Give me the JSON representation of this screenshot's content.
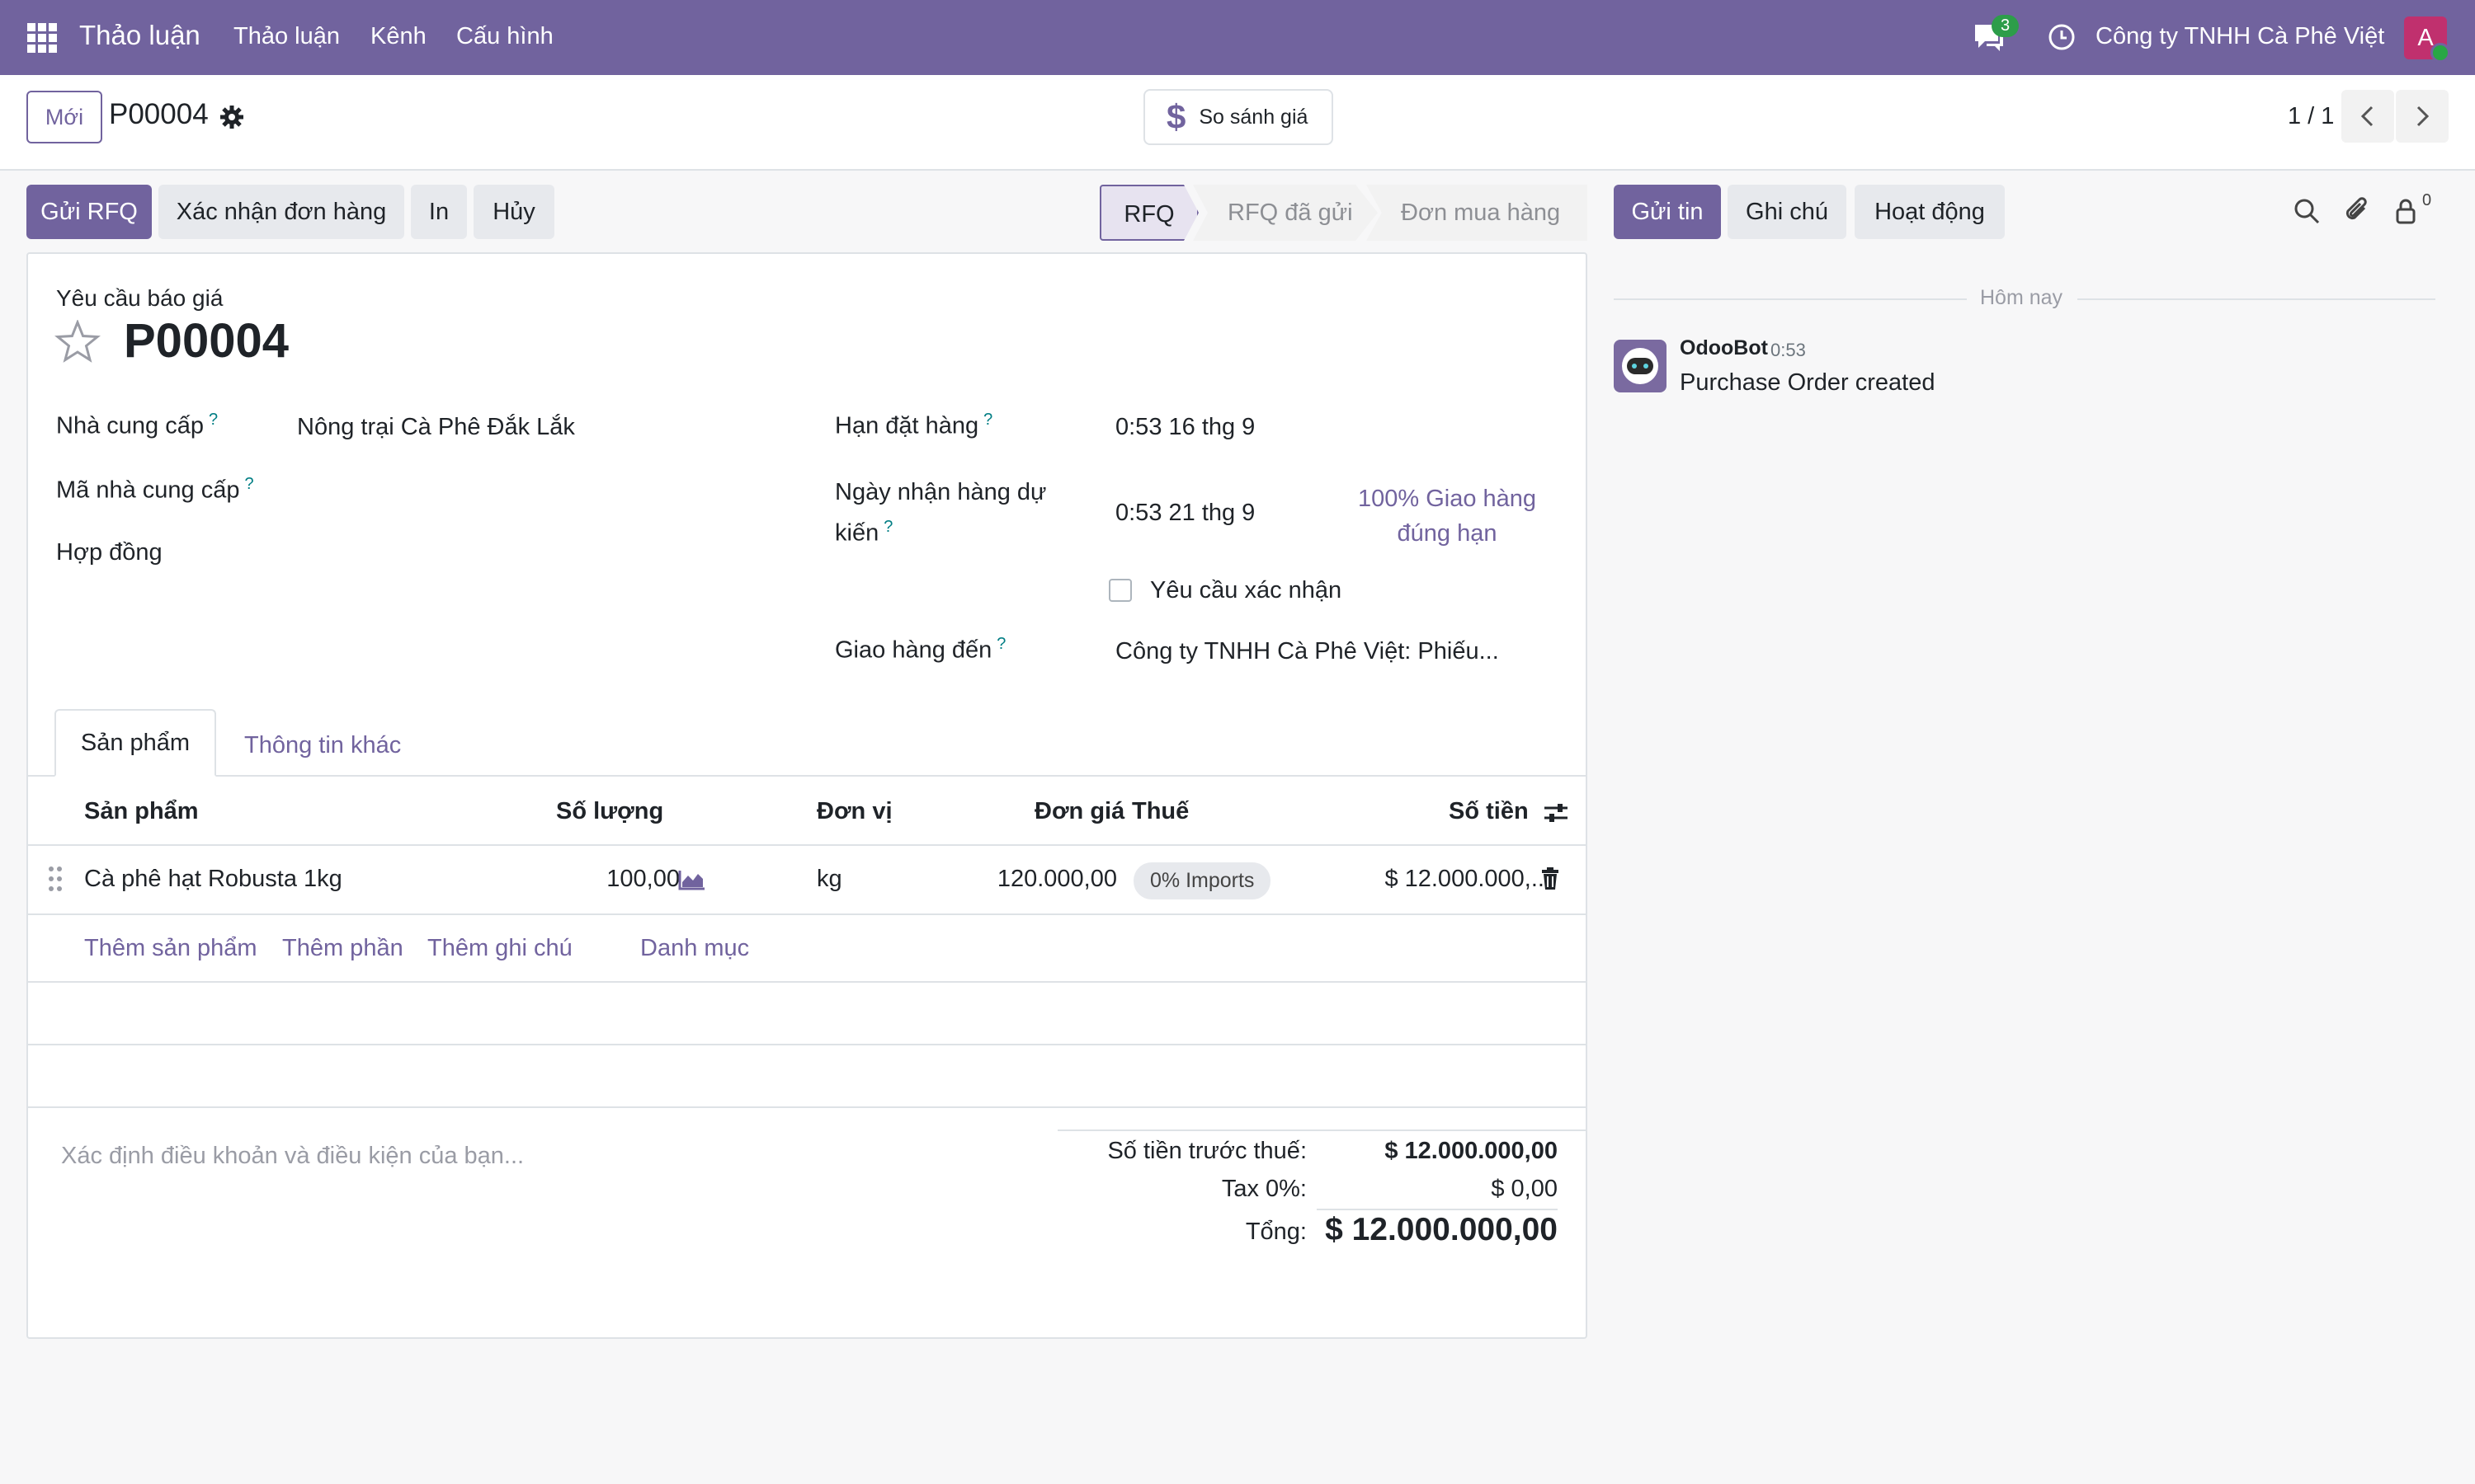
{
  "navbar": {
    "brand": "Thảo luận",
    "menu": [
      "Thảo luận",
      "Kênh",
      "Cấu hình"
    ],
    "chat_count": "3",
    "company": "Công ty TNHH Cà Phê Việt",
    "avatar_letter": "A",
    "color": "#71639e"
  },
  "control": {
    "new_label": "Mới",
    "record_name": "P00004",
    "compare_label": "So sánh giá",
    "compare_icon": "$",
    "pager": "1 / 1"
  },
  "actions": {
    "send_rfq": "Gửi RFQ",
    "confirm": "Xác nhận đơn hàng",
    "print": "In",
    "cancel": "Hủy"
  },
  "statusbar": {
    "steps": [
      "RFQ",
      "RFQ đã gửi",
      "Đơn mua hàng"
    ],
    "active": "RFQ"
  },
  "form": {
    "subtitle": "Yêu cầu báo giá",
    "name": "P00004",
    "vendor_label": "Nhà cung cấp",
    "vendor_value": "Nông trại Cà Phê Đắk Lắk",
    "vendor_ref_label": "Mã nhà cung cấp",
    "agreement_label": "Hợp đồng",
    "deadline_label": "Hạn đặt hàng",
    "deadline_value": "0:53 16 thg 9",
    "expected_label_1": "Ngày nhận hàng dự",
    "expected_label_2": "kiến",
    "expected_value": "0:53 21 thg 9",
    "on_time_1": "100% Giao hàng",
    "on_time_2": "đúng hạn",
    "ask_confirm_label": "Yêu cầu xác nhận",
    "deliver_to_label": "Giao hàng đến",
    "deliver_to_value": "Công ty TNHH Cà Phê Việt: Phiếu...",
    "help_mark": "?"
  },
  "tabs": [
    "Sản phẩm",
    "Thông tin khác"
  ],
  "table": {
    "headers": {
      "product": "Sản phẩm",
      "qty": "Số lượng",
      "uom": "Đơn vị",
      "price": "Đơn giá",
      "tax": "Thuế",
      "subtotal": "Số tiền"
    },
    "rows": [
      {
        "product": "Cà phê hạt Robusta 1kg",
        "qty": "100,00",
        "uom": "kg",
        "price": "120.000,00",
        "tax": "0% Imports",
        "subtotal": "$ 12.000.000,..."
      }
    ],
    "add_links": [
      "Thêm sản phẩm",
      "Thêm phần",
      "Thêm ghi chú",
      "Danh mục"
    ]
  },
  "terms_placeholder": "Xác định điều khoản và điều kiện của bạn...",
  "totals": {
    "untaxed_label": "Số tiền trước thuế:",
    "untaxed_value": "$ 12.000.000,00",
    "tax_label": "Tax 0%:",
    "tax_value": "$ 0,00",
    "total_label": "Tổng:",
    "total_value": "$ 12.000.000,00"
  },
  "chatter": {
    "send_message": "Gửi tin",
    "log_note": "Ghi chú",
    "activity": "Hoạt động",
    "followers_count": "0",
    "today": "Hôm nay",
    "messages": [
      {
        "author": "OdooBot",
        "time": "0:53",
        "body": "Purchase Order created"
      }
    ]
  }
}
